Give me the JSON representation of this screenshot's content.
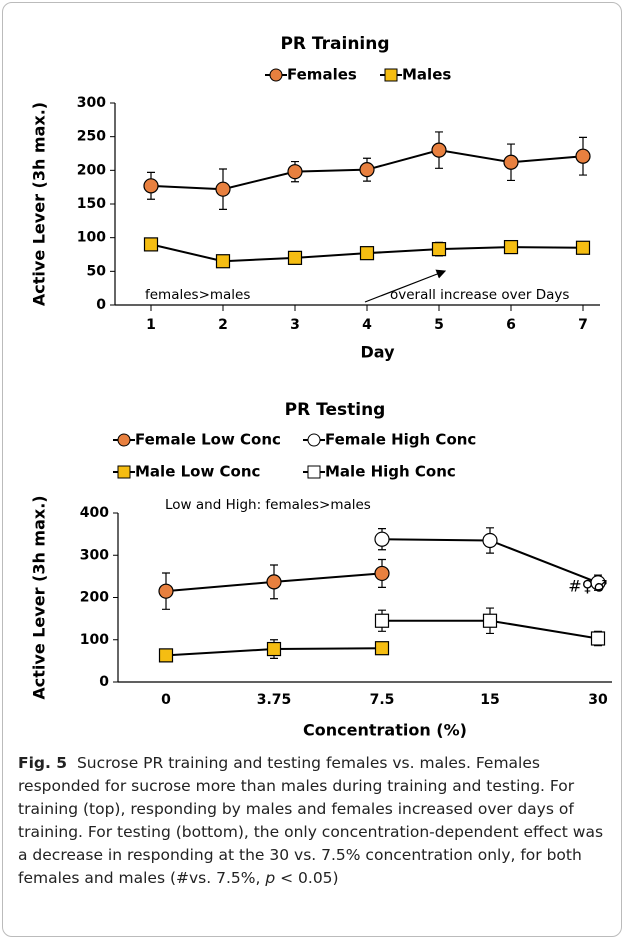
{
  "chart_data": [
    {
      "type": "line",
      "title": "PR Training",
      "x_label": "Day",
      "y_label": "Active Lever (3h max.)",
      "x": [
        1,
        2,
        3,
        4,
        5,
        6,
        7
      ],
      "xlim": [
        0.5,
        7.5
      ],
      "xticks": [
        1,
        2,
        3,
        4,
        5,
        6,
        7
      ],
      "ylim": [
        0,
        300
      ],
      "yticks": [
        0,
        50,
        100,
        150,
        200,
        250,
        300
      ],
      "series": [
        {
          "name": "Females",
          "color": "#e8803f",
          "marker": "circle",
          "values": [
            177,
            172,
            198,
            201,
            230,
            212,
            221
          ],
          "errors": [
            20,
            30,
            15,
            17,
            27,
            27,
            28
          ]
        },
        {
          "name": "Males",
          "color": "#f5bd12",
          "marker": "square",
          "values": [
            90,
            65,
            70,
            77,
            83,
            86,
            85
          ],
          "errors": [
            5,
            6,
            8,
            9,
            10,
            8,
            8
          ]
        }
      ],
      "annotations": [
        "females>males",
        "overall increase over Days"
      ]
    },
    {
      "type": "line",
      "title": "PR Testing",
      "x_label": "Concentration (%)",
      "y_label": "Active Lever (3h max.)",
      "categories": [
        "0",
        "3.75",
        "7.5",
        "15",
        "30"
      ],
      "ylim": [
        0,
        400
      ],
      "yticks": [
        0,
        100,
        200,
        300,
        400
      ],
      "series": [
        {
          "name": "Female Low Conc",
          "color": "#e8803f",
          "marker": "circle",
          "values": [
            215,
            237,
            257,
            null,
            null
          ],
          "errors": [
            43,
            40,
            33,
            null,
            null
          ]
        },
        {
          "name": "Female High Conc",
          "color": "#ffffff",
          "marker": "circle",
          "values": [
            null,
            null,
            338,
            335,
            235
          ],
          "errors": [
            null,
            null,
            25,
            30,
            18
          ]
        },
        {
          "name": "Male Low Conc",
          "color": "#f5bd12",
          "marker": "square",
          "values": [
            63,
            78,
            80,
            null,
            null
          ],
          "errors": [
            8,
            22,
            5,
            null,
            null
          ]
        },
        {
          "name": "Male High Conc",
          "color": "#ffffff",
          "marker": "square",
          "values": [
            null,
            null,
            145,
            145,
            103
          ],
          "errors": [
            null,
            null,
            25,
            30,
            17
          ]
        }
      ],
      "annotations": [
        "Low and High: females>males",
        "#♀♂"
      ]
    }
  ],
  "caption": {
    "label": "Fig. 5",
    "text": "Sucrose PR training and testing females vs. males. Females responded for sucrose more than males during training and testing. For training (top), responding by males and females increased over days of training. For testing (bottom), the only concentration-dependent effect was a decrease in responding at the 30 vs. 7.5% concentration only, for both females and males (#vs. 7.5%, ",
    "italic": "p",
    "tail": " < 0.05)"
  }
}
